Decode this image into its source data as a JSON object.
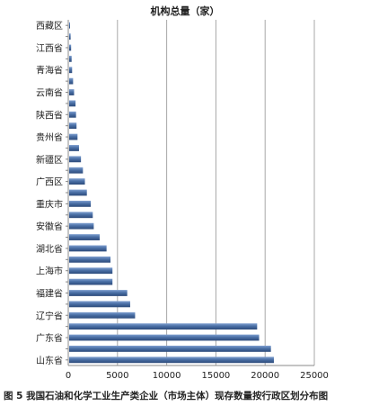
{
  "chart_data": {
    "type": "bar",
    "orientation": "horizontal",
    "title": "机构总量（家）",
    "categories": [
      "山东省",
      "",
      "广东省",
      "",
      "辽宁省",
      "",
      "福建省",
      "",
      "上海市",
      "",
      "湖北省",
      "",
      "安徽省",
      "",
      "重庆市",
      "",
      "广西区",
      "",
      "新疆区",
      "",
      "贵州省",
      "",
      "陕西省",
      "",
      "云南省",
      "",
      "青海省",
      "",
      "江西省",
      "",
      "西藏区"
    ],
    "values": [
      20800,
      20500,
      19300,
      19100,
      6700,
      6200,
      5900,
      4400,
      4400,
      4200,
      3800,
      3100,
      2500,
      2400,
      2200,
      1800,
      1600,
      1400,
      1200,
      1000,
      850,
      750,
      700,
      650,
      500,
      400,
      300,
      250,
      200,
      150,
      80
    ],
    "xlim": [
      0,
      25000
    ],
    "xticks": [
      "0",
      "5000",
      "10000",
      "15000",
      "20000",
      "25000"
    ],
    "grid": true,
    "bar_color": "#4a6fa5"
  },
  "caption": "图 5   我国石油和化学工业生产类企业（市场主体）现存数量按行政区划分布图"
}
